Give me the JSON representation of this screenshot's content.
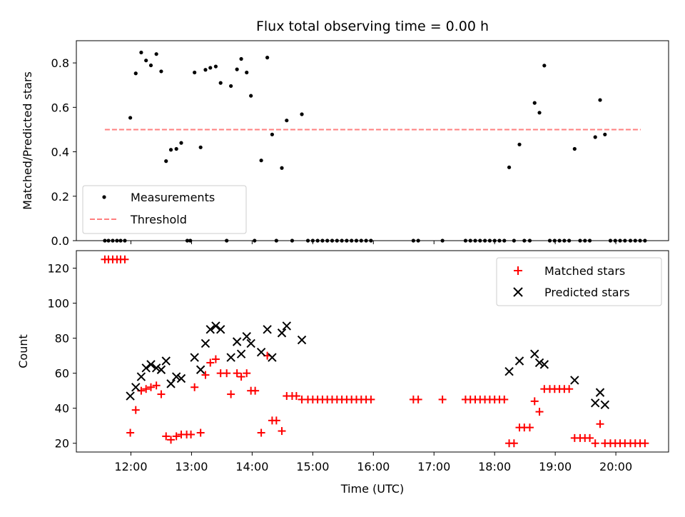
{
  "chart_data": [
    {
      "type": "scatter",
      "title": "Flux total observing time = 0.00 h",
      "xlabel": "",
      "ylabel": "Matched/Predicted stars",
      "xlim": [
        11.1,
        20.87
      ],
      "ylim": [
        0,
        0.9
      ],
      "yticks": [
        0,
        0.2,
        0.4,
        0.6,
        0.8
      ],
      "ytick_labels": [
        "0.0",
        "0.2",
        "0.4",
        "0.6",
        "0.8"
      ],
      "legend_location": "lower-left",
      "series": [
        {
          "name": "Measurements",
          "marker": "dot",
          "color": "#000000",
          "points": [
            [
              11.57,
              0
            ],
            [
              11.63,
              0
            ],
            [
              11.7,
              0
            ],
            [
              11.77,
              0
            ],
            [
              11.83,
              0
            ],
            [
              11.9,
              0
            ],
            [
              11.99,
              0.553
            ],
            [
              12.08,
              0.753
            ],
            [
              12.17,
              0.847
            ],
            [
              12.25,
              0.811
            ],
            [
              12.33,
              0.789
            ],
            [
              12.42,
              0.84
            ],
            [
              12.5,
              0.762
            ],
            [
              12.58,
              0.358
            ],
            [
              12.66,
              0.409
            ],
            [
              12.75,
              0.413
            ],
            [
              12.83,
              0.44
            ],
            [
              12.93,
              0
            ],
            [
              12.98,
              0
            ],
            [
              13.05,
              0.757
            ],
            [
              13.15,
              0.42
            ],
            [
              13.23,
              0.769
            ],
            [
              13.31,
              0.778
            ],
            [
              13.4,
              0.784
            ],
            [
              13.48,
              0.71
            ],
            [
              13.58,
              0
            ],
            [
              13.65,
              0.696
            ],
            [
              13.75,
              0.771
            ],
            [
              13.82,
              0.818
            ],
            [
              13.91,
              0.757
            ],
            [
              13.98,
              0.652
            ],
            [
              14.04,
              0
            ],
            [
              14.15,
              0.361
            ],
            [
              14.25,
              0.824
            ],
            [
              14.33,
              0.478
            ],
            [
              14.4,
              0
            ],
            [
              14.49,
              0.327
            ],
            [
              14.57,
              0.541
            ],
            [
              14.66,
              0
            ],
            [
              14.82,
              0.569
            ],
            [
              14.92,
              0
            ],
            [
              15.0,
              0
            ],
            [
              15.08,
              0
            ],
            [
              15.16,
              0
            ],
            [
              15.24,
              0
            ],
            [
              15.32,
              0
            ],
            [
              15.4,
              0
            ],
            [
              15.48,
              0
            ],
            [
              15.56,
              0
            ],
            [
              15.64,
              0
            ],
            [
              15.72,
              0
            ],
            [
              15.8,
              0
            ],
            [
              15.88,
              0
            ],
            [
              15.96,
              0
            ],
            [
              16.66,
              0
            ],
            [
              16.74,
              0
            ],
            [
              17.14,
              0
            ],
            [
              17.52,
              0
            ],
            [
              17.6,
              0
            ],
            [
              17.68,
              0
            ],
            [
              17.76,
              0
            ],
            [
              17.84,
              0
            ],
            [
              17.92,
              0
            ],
            [
              18.0,
              0
            ],
            [
              18.08,
              0
            ],
            [
              18.16,
              0
            ],
            [
              18.24,
              0.33
            ],
            [
              18.32,
              0
            ],
            [
              18.41,
              0.433
            ],
            [
              18.49,
              0
            ],
            [
              18.58,
              0
            ],
            [
              18.66,
              0.62
            ],
            [
              18.74,
              0.576
            ],
            [
              18.82,
              0.788
            ],
            [
              18.91,
              0
            ],
            [
              18.99,
              0
            ],
            [
              19.07,
              0
            ],
            [
              19.15,
              0
            ],
            [
              19.23,
              0
            ],
            [
              19.32,
              0.413
            ],
            [
              19.41,
              0
            ],
            [
              19.49,
              0
            ],
            [
              19.57,
              0
            ],
            [
              19.66,
              0.466
            ],
            [
              19.74,
              0.633
            ],
            [
              19.82,
              0.478
            ],
            [
              19.91,
              0
            ],
            [
              19.99,
              0
            ],
            [
              20.07,
              0
            ],
            [
              20.15,
              0
            ],
            [
              20.24,
              0
            ],
            [
              20.32,
              0
            ],
            [
              20.4,
              0
            ],
            [
              20.48,
              0
            ]
          ]
        },
        {
          "name": "Threshold",
          "style": "dashed",
          "color": "#ff7f7f",
          "x": [
            11.57,
            20.41
          ],
          "y": [
            0.5,
            0.5
          ]
        }
      ]
    },
    {
      "type": "scatter",
      "title": "",
      "xlabel": "Time (UTC)",
      "ylabel": "Count",
      "xlim": [
        11.1,
        20.87
      ],
      "ylim": [
        15,
        130
      ],
      "yticks": [
        20,
        40,
        60,
        80,
        100,
        120
      ],
      "ytick_labels": [
        "20",
        "40",
        "60",
        "80",
        "100",
        "120"
      ],
      "xticks": [
        12,
        13,
        14,
        15,
        16,
        17,
        18,
        19,
        20
      ],
      "xtick_labels": [
        "12:00",
        "13:00",
        "14:00",
        "15:00",
        "16:00",
        "17:00",
        "18:00",
        "19:00",
        "20:00"
      ],
      "legend_location": "top-right",
      "series": [
        {
          "name": "Matched stars",
          "marker": "plus",
          "color": "#ff0000",
          "points": [
            [
              11.57,
              125
            ],
            [
              11.63,
              125
            ],
            [
              11.7,
              125
            ],
            [
              11.77,
              125
            ],
            [
              11.83,
              125
            ],
            [
              11.9,
              125
            ],
            [
              11.99,
              26
            ],
            [
              12.08,
              39
            ],
            [
              12.17,
              50
            ],
            [
              12.25,
              51
            ],
            [
              12.33,
              52
            ],
            [
              12.42,
              53
            ],
            [
              12.5,
              48
            ],
            [
              12.58,
              24
            ],
            [
              12.66,
              22
            ],
            [
              12.75,
              24
            ],
            [
              12.83,
              25
            ],
            [
              12.92,
              25
            ],
            [
              12.99,
              25
            ],
            [
              13.05,
              52
            ],
            [
              13.15,
              26
            ],
            [
              13.23,
              59
            ],
            [
              13.31,
              66
            ],
            [
              13.4,
              68
            ],
            [
              13.48,
              60
            ],
            [
              13.58,
              60
            ],
            [
              13.65,
              48
            ],
            [
              13.75,
              60
            ],
            [
              13.82,
              58
            ],
            [
              13.91,
              60
            ],
            [
              13.98,
              50
            ],
            [
              14.05,
              50
            ],
            [
              14.15,
              26
            ],
            [
              14.25,
              70
            ],
            [
              14.33,
              33
            ],
            [
              14.4,
              33
            ],
            [
              14.49,
              27
            ],
            [
              14.57,
              47
            ],
            [
              14.66,
              47
            ],
            [
              14.73,
              47
            ],
            [
              14.82,
              45
            ],
            [
              14.92,
              45
            ],
            [
              15.0,
              45
            ],
            [
              15.08,
              45
            ],
            [
              15.16,
              45
            ],
            [
              15.24,
              45
            ],
            [
              15.32,
              45
            ],
            [
              15.4,
              45
            ],
            [
              15.48,
              45
            ],
            [
              15.56,
              45
            ],
            [
              15.64,
              45
            ],
            [
              15.72,
              45
            ],
            [
              15.8,
              45
            ],
            [
              15.88,
              45
            ],
            [
              15.96,
              45
            ],
            [
              16.66,
              45
            ],
            [
              16.74,
              45
            ],
            [
              17.14,
              45
            ],
            [
              17.52,
              45
            ],
            [
              17.6,
              45
            ],
            [
              17.68,
              45
            ],
            [
              17.76,
              45
            ],
            [
              17.84,
              45
            ],
            [
              17.92,
              45
            ],
            [
              18.0,
              45
            ],
            [
              18.08,
              45
            ],
            [
              18.16,
              45
            ],
            [
              18.24,
              20
            ],
            [
              18.32,
              20
            ],
            [
              18.41,
              29
            ],
            [
              18.49,
              29
            ],
            [
              18.58,
              29
            ],
            [
              18.66,
              44
            ],
            [
              18.74,
              38
            ],
            [
              18.82,
              51
            ],
            [
              18.91,
              51
            ],
            [
              18.99,
              51
            ],
            [
              19.07,
              51
            ],
            [
              19.15,
              51
            ],
            [
              19.23,
              51
            ],
            [
              19.32,
              23
            ],
            [
              19.41,
              23
            ],
            [
              19.49,
              23
            ],
            [
              19.57,
              23
            ],
            [
              19.66,
              20
            ],
            [
              19.74,
              31
            ],
            [
              19.82,
              20
            ],
            [
              19.91,
              20
            ],
            [
              19.99,
              20
            ],
            [
              20.07,
              20
            ],
            [
              20.15,
              20
            ],
            [
              20.24,
              20
            ],
            [
              20.32,
              20
            ],
            [
              20.4,
              20
            ],
            [
              20.48,
              20
            ]
          ]
        },
        {
          "name": "Predicted stars",
          "marker": "x",
          "color": "#000000",
          "points": [
            [
              11.99,
              47
            ],
            [
              12.08,
              52
            ],
            [
              12.17,
              58
            ],
            [
              12.25,
              63
            ],
            [
              12.33,
              65
            ],
            [
              12.42,
              63
            ],
            [
              12.5,
              62
            ],
            [
              12.58,
              67
            ],
            [
              12.66,
              54
            ],
            [
              12.75,
              58
            ],
            [
              12.83,
              57
            ],
            [
              13.05,
              69
            ],
            [
              13.15,
              62
            ],
            [
              13.23,
              77
            ],
            [
              13.31,
              85
            ],
            [
              13.4,
              87
            ],
            [
              13.48,
              85
            ],
            [
              13.65,
              69
            ],
            [
              13.75,
              78
            ],
            [
              13.82,
              71
            ],
            [
              13.91,
              81
            ],
            [
              13.98,
              77
            ],
            [
              14.15,
              72
            ],
            [
              14.25,
              85
            ],
            [
              14.33,
              69
            ],
            [
              14.49,
              83
            ],
            [
              14.57,
              87
            ],
            [
              14.82,
              79
            ],
            [
              18.24,
              61
            ],
            [
              18.41,
              67
            ],
            [
              18.66,
              71
            ],
            [
              18.74,
              66
            ],
            [
              18.82,
              65
            ],
            [
              19.32,
              56
            ],
            [
              19.66,
              43
            ],
            [
              19.74,
              49
            ],
            [
              19.82,
              42
            ]
          ]
        }
      ]
    }
  ]
}
